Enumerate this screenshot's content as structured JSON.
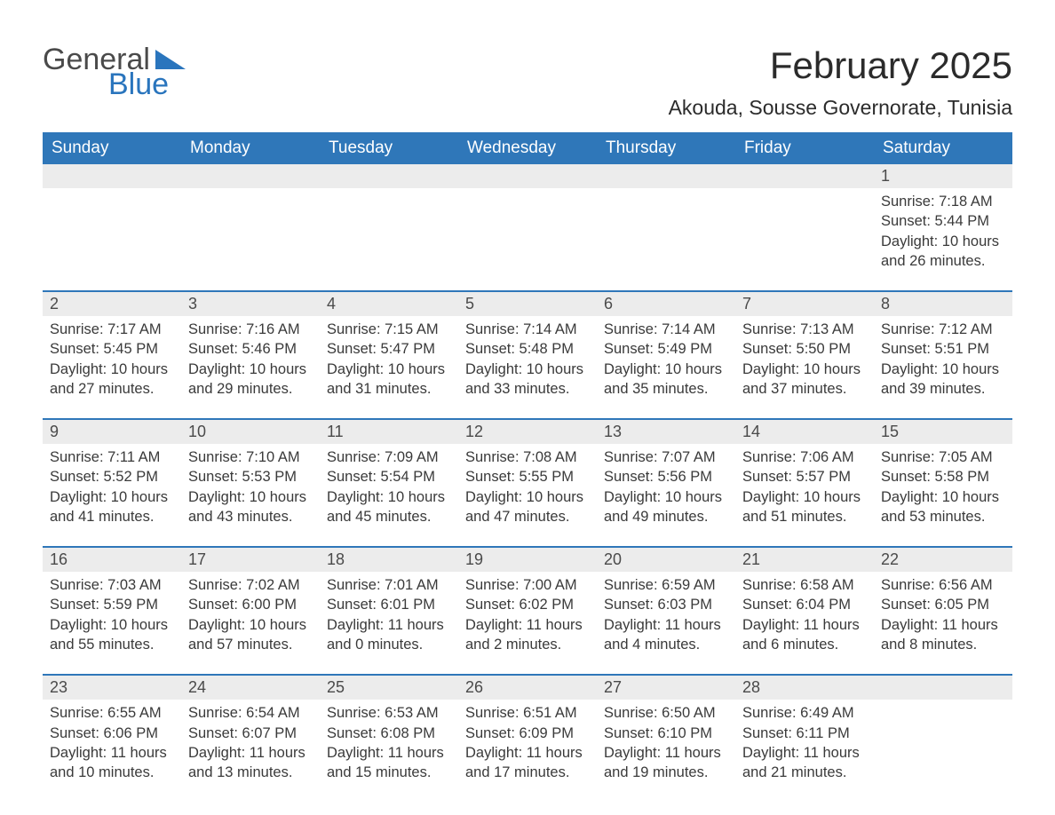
{
  "brand": {
    "word1": "General",
    "word2": "Blue"
  },
  "title": "February 2025",
  "location": "Akouda, Sousse Governorate, Tunisia",
  "colors": {
    "header_bg": "#2f77b9",
    "header_text": "#ffffff",
    "row_accent": "#2f77b9",
    "daynum_bg": "#ececec",
    "text": "#333333",
    "brand_blue": "#2a75bd"
  },
  "days_of_week": [
    "Sunday",
    "Monday",
    "Tuesday",
    "Wednesday",
    "Thursday",
    "Friday",
    "Saturday"
  ],
  "weeks": [
    [
      {
        "n": "",
        "sr": "",
        "ss": "",
        "dl": ""
      },
      {
        "n": "",
        "sr": "",
        "ss": "",
        "dl": ""
      },
      {
        "n": "",
        "sr": "",
        "ss": "",
        "dl": ""
      },
      {
        "n": "",
        "sr": "",
        "ss": "",
        "dl": ""
      },
      {
        "n": "",
        "sr": "",
        "ss": "",
        "dl": ""
      },
      {
        "n": "",
        "sr": "",
        "ss": "",
        "dl": ""
      },
      {
        "n": "1",
        "sr": "Sunrise: 7:18 AM",
        "ss": "Sunset: 5:44 PM",
        "dl": "Daylight: 10 hours and 26 minutes."
      }
    ],
    [
      {
        "n": "2",
        "sr": "Sunrise: 7:17 AM",
        "ss": "Sunset: 5:45 PM",
        "dl": "Daylight: 10 hours and 27 minutes."
      },
      {
        "n": "3",
        "sr": "Sunrise: 7:16 AM",
        "ss": "Sunset: 5:46 PM",
        "dl": "Daylight: 10 hours and 29 minutes."
      },
      {
        "n": "4",
        "sr": "Sunrise: 7:15 AM",
        "ss": "Sunset: 5:47 PM",
        "dl": "Daylight: 10 hours and 31 minutes."
      },
      {
        "n": "5",
        "sr": "Sunrise: 7:14 AM",
        "ss": "Sunset: 5:48 PM",
        "dl": "Daylight: 10 hours and 33 minutes."
      },
      {
        "n": "6",
        "sr": "Sunrise: 7:14 AM",
        "ss": "Sunset: 5:49 PM",
        "dl": "Daylight: 10 hours and 35 minutes."
      },
      {
        "n": "7",
        "sr": "Sunrise: 7:13 AM",
        "ss": "Sunset: 5:50 PM",
        "dl": "Daylight: 10 hours and 37 minutes."
      },
      {
        "n": "8",
        "sr": "Sunrise: 7:12 AM",
        "ss": "Sunset: 5:51 PM",
        "dl": "Daylight: 10 hours and 39 minutes."
      }
    ],
    [
      {
        "n": "9",
        "sr": "Sunrise: 7:11 AM",
        "ss": "Sunset: 5:52 PM",
        "dl": "Daylight: 10 hours and 41 minutes."
      },
      {
        "n": "10",
        "sr": "Sunrise: 7:10 AM",
        "ss": "Sunset: 5:53 PM",
        "dl": "Daylight: 10 hours and 43 minutes."
      },
      {
        "n": "11",
        "sr": "Sunrise: 7:09 AM",
        "ss": "Sunset: 5:54 PM",
        "dl": "Daylight: 10 hours and 45 minutes."
      },
      {
        "n": "12",
        "sr": "Sunrise: 7:08 AM",
        "ss": "Sunset: 5:55 PM",
        "dl": "Daylight: 10 hours and 47 minutes."
      },
      {
        "n": "13",
        "sr": "Sunrise: 7:07 AM",
        "ss": "Sunset: 5:56 PM",
        "dl": "Daylight: 10 hours and 49 minutes."
      },
      {
        "n": "14",
        "sr": "Sunrise: 7:06 AM",
        "ss": "Sunset: 5:57 PM",
        "dl": "Daylight: 10 hours and 51 minutes."
      },
      {
        "n": "15",
        "sr": "Sunrise: 7:05 AM",
        "ss": "Sunset: 5:58 PM",
        "dl": "Daylight: 10 hours and 53 minutes."
      }
    ],
    [
      {
        "n": "16",
        "sr": "Sunrise: 7:03 AM",
        "ss": "Sunset: 5:59 PM",
        "dl": "Daylight: 10 hours and 55 minutes."
      },
      {
        "n": "17",
        "sr": "Sunrise: 7:02 AM",
        "ss": "Sunset: 6:00 PM",
        "dl": "Daylight: 10 hours and 57 minutes."
      },
      {
        "n": "18",
        "sr": "Sunrise: 7:01 AM",
        "ss": "Sunset: 6:01 PM",
        "dl": "Daylight: 11 hours and 0 minutes."
      },
      {
        "n": "19",
        "sr": "Sunrise: 7:00 AM",
        "ss": "Sunset: 6:02 PM",
        "dl": "Daylight: 11 hours and 2 minutes."
      },
      {
        "n": "20",
        "sr": "Sunrise: 6:59 AM",
        "ss": "Sunset: 6:03 PM",
        "dl": "Daylight: 11 hours and 4 minutes."
      },
      {
        "n": "21",
        "sr": "Sunrise: 6:58 AM",
        "ss": "Sunset: 6:04 PM",
        "dl": "Daylight: 11 hours and 6 minutes."
      },
      {
        "n": "22",
        "sr": "Sunrise: 6:56 AM",
        "ss": "Sunset: 6:05 PM",
        "dl": "Daylight: 11 hours and 8 minutes."
      }
    ],
    [
      {
        "n": "23",
        "sr": "Sunrise: 6:55 AM",
        "ss": "Sunset: 6:06 PM",
        "dl": "Daylight: 11 hours and 10 minutes."
      },
      {
        "n": "24",
        "sr": "Sunrise: 6:54 AM",
        "ss": "Sunset: 6:07 PM",
        "dl": "Daylight: 11 hours and 13 minutes."
      },
      {
        "n": "25",
        "sr": "Sunrise: 6:53 AM",
        "ss": "Sunset: 6:08 PM",
        "dl": "Daylight: 11 hours and 15 minutes."
      },
      {
        "n": "26",
        "sr": "Sunrise: 6:51 AM",
        "ss": "Sunset: 6:09 PM",
        "dl": "Daylight: 11 hours and 17 minutes."
      },
      {
        "n": "27",
        "sr": "Sunrise: 6:50 AM",
        "ss": "Sunset: 6:10 PM",
        "dl": "Daylight: 11 hours and 19 minutes."
      },
      {
        "n": "28",
        "sr": "Sunrise: 6:49 AM",
        "ss": "Sunset: 6:11 PM",
        "dl": "Daylight: 11 hours and 21 minutes."
      },
      {
        "n": "",
        "sr": "",
        "ss": "",
        "dl": ""
      }
    ]
  ]
}
